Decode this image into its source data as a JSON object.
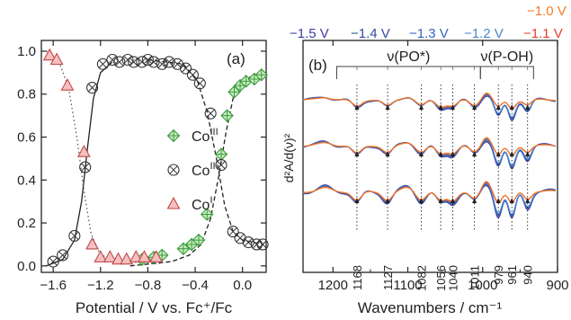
{
  "chart_data": [
    {
      "type": "scatter",
      "panel_label": "(a)",
      "xlabel": "Potential / V vs. Fc⁺/Fc",
      "ylabel": "",
      "xlim": [
        -1.7,
        0.2
      ],
      "ylim": [
        -0.03,
        1.05
      ],
      "x_ticks": [
        -1.6,
        -1.2,
        -0.8,
        -0.4,
        0.0
      ],
      "x_tick_labels": [
        "−1.6",
        "−1.2",
        "−0.8",
        "−0.4",
        "0.0"
      ],
      "y_ticks": [
        0.0,
        0.2,
        0.4,
        0.6,
        0.8,
        1.0
      ],
      "y_tick_labels": [
        "0.0",
        "0.2",
        "0.4",
        "0.6",
        "0.8",
        "1.0"
      ],
      "legend_position": "center-right",
      "series": [
        {
          "name": "Co",
          "name_sup": "III",
          "marker": "diamond-cross",
          "color": "#3a9a3a",
          "fill": "#c8ecc0",
          "points": [
            [
              -0.85,
              0.03
            ],
            [
              -0.75,
              0.04
            ],
            [
              -0.68,
              0.05
            ],
            [
              -0.5,
              0.08
            ],
            [
              -0.43,
              0.1
            ],
            [
              -0.37,
              0.12
            ],
            [
              -0.3,
              0.24
            ],
            [
              -0.18,
              0.52
            ],
            [
              -0.13,
              0.7
            ],
            [
              -0.07,
              0.81
            ],
            [
              -0.02,
              0.84
            ],
            [
              0.03,
              0.86
            ],
            [
              0.1,
              0.87
            ],
            [
              0.16,
              0.89
            ]
          ],
          "fit": [
            [
              -0.95,
              0.0
            ],
            [
              -0.6,
              0.02
            ],
            [
              -0.45,
              0.05
            ],
            [
              -0.35,
              0.1
            ],
            [
              -0.27,
              0.22
            ],
            [
              -0.2,
              0.42
            ],
            [
              -0.14,
              0.62
            ],
            [
              -0.08,
              0.78
            ],
            [
              0.0,
              0.86
            ],
            [
              0.1,
              0.89
            ],
            [
              0.18,
              0.9
            ]
          ]
        },
        {
          "name": "Co",
          "name_sup": "II",
          "marker": "circle-x",
          "color": "#333333",
          "fill": "#ffffff",
          "points": [
            [
              -1.6,
              0.02
            ],
            [
              -1.52,
              0.05
            ],
            [
              -1.42,
              0.14
            ],
            [
              -1.33,
              0.46
            ],
            [
              -1.27,
              0.83
            ],
            [
              -1.18,
              0.94
            ],
            [
              -1.1,
              0.96
            ],
            [
              -1.04,
              0.95
            ],
            [
              -0.97,
              0.96
            ],
            [
              -0.92,
              0.95
            ],
            [
              -0.85,
              0.95
            ],
            [
              -0.8,
              0.96
            ],
            [
              -0.75,
              0.95
            ],
            [
              -0.68,
              0.94
            ],
            [
              -0.62,
              0.95
            ],
            [
              -0.55,
              0.94
            ],
            [
              -0.48,
              0.92
            ],
            [
              -0.42,
              0.89
            ],
            [
              -0.36,
              0.85
            ],
            [
              -0.27,
              0.71
            ],
            [
              -0.18,
              0.47
            ],
            [
              -0.08,
              0.16
            ],
            [
              -0.02,
              0.13
            ],
            [
              0.05,
              0.11
            ],
            [
              0.12,
              0.1
            ],
            [
              0.17,
              0.1
            ]
          ],
          "fit": [
            [
              -1.66,
              0.0
            ],
            [
              -1.52,
              0.03
            ],
            [
              -1.42,
              0.12
            ],
            [
              -1.36,
              0.3
            ],
            [
              -1.31,
              0.55
            ],
            [
              -1.26,
              0.78
            ],
            [
              -1.2,
              0.9
            ],
            [
              -1.1,
              0.95
            ],
            [
              -0.8,
              0.96
            ],
            [
              -0.5,
              0.94
            ],
            [
              -0.38,
              0.86
            ],
            [
              -0.3,
              0.72
            ],
            [
              -0.22,
              0.5
            ],
            [
              -0.15,
              0.28
            ],
            [
              -0.08,
              0.16
            ],
            [
              0.0,
              0.12
            ],
            [
              0.18,
              0.1
            ]
          ]
        },
        {
          "name": "Co",
          "name_sup": "I",
          "marker": "triangle",
          "color": "#c04848",
          "fill": "#f5c0c0",
          "points": [
            [
              -1.63,
              0.98
            ],
            [
              -1.57,
              0.96
            ],
            [
              -1.48,
              0.84
            ],
            [
              -1.34,
              0.53
            ],
            [
              -1.27,
              0.1
            ],
            [
              -1.2,
              0.04
            ],
            [
              -1.12,
              0.04
            ],
            [
              -1.05,
              0.03
            ],
            [
              -0.98,
              0.03
            ],
            [
              -0.9,
              0.04
            ],
            [
              -0.83,
              0.04
            ],
            [
              -0.73,
              0.04
            ]
          ],
          "fit": [
            [
              -1.66,
              1.0
            ],
            [
              -1.55,
              0.95
            ],
            [
              -1.47,
              0.83
            ],
            [
              -1.4,
              0.6
            ],
            [
              -1.34,
              0.35
            ],
            [
              -1.28,
              0.15
            ],
            [
              -1.2,
              0.05
            ],
            [
              -1.0,
              0.02
            ],
            [
              -0.7,
              0.01
            ]
          ]
        }
      ]
    },
    {
      "type": "line",
      "panel_label": "(b)",
      "xlabel": "Wavenumbers / cm⁻¹",
      "ylabel": "d²A/d(ν)²",
      "xlim": [
        1240,
        900
      ],
      "x_reversed": true,
      "x_ticks": [
        1200,
        1100,
        1000,
        900
      ],
      "x_tick_labels": [
        "1200",
        "1100",
        "1000",
        "900"
      ],
      "y_ticks_shown": false,
      "potential_labels": [
        {
          "text": "−1.5 V",
          "color": "#3d3aa6"
        },
        {
          "text": "−1.4 V",
          "color": "#2b4f9e"
        },
        {
          "text": "−1.3 V",
          "color": "#3566c0"
        },
        {
          "text": "−1.2 V",
          "color": "#4a86cf"
        },
        {
          "text": "−1.1 V",
          "color": "#e2402a"
        },
        {
          "text": "−1.0 V",
          "color": "#f47c24"
        }
      ],
      "region_labels": [
        {
          "text": "ν(PO*)",
          "from": 1195,
          "to": 1003
        },
        {
          "text": "ν(P-OH)",
          "from": 1003,
          "to": 932
        }
      ],
      "band_positions": [
        1168,
        1127,
        1082,
        1056,
        1040,
        1011,
        979,
        961,
        940
      ],
      "band_labels": [
        "1168",
        "1127",
        "1082",
        "1056",
        "1040",
        "1011",
        "979",
        "961",
        "940"
      ],
      "band_label_angle": -90,
      "trace_groups": 3,
      "trace_colors": [
        "#3d3aa6",
        "#2b4f9e",
        "#3566c0",
        "#4a86cf",
        "#e2402a",
        "#f47c24"
      ]
    }
  ]
}
